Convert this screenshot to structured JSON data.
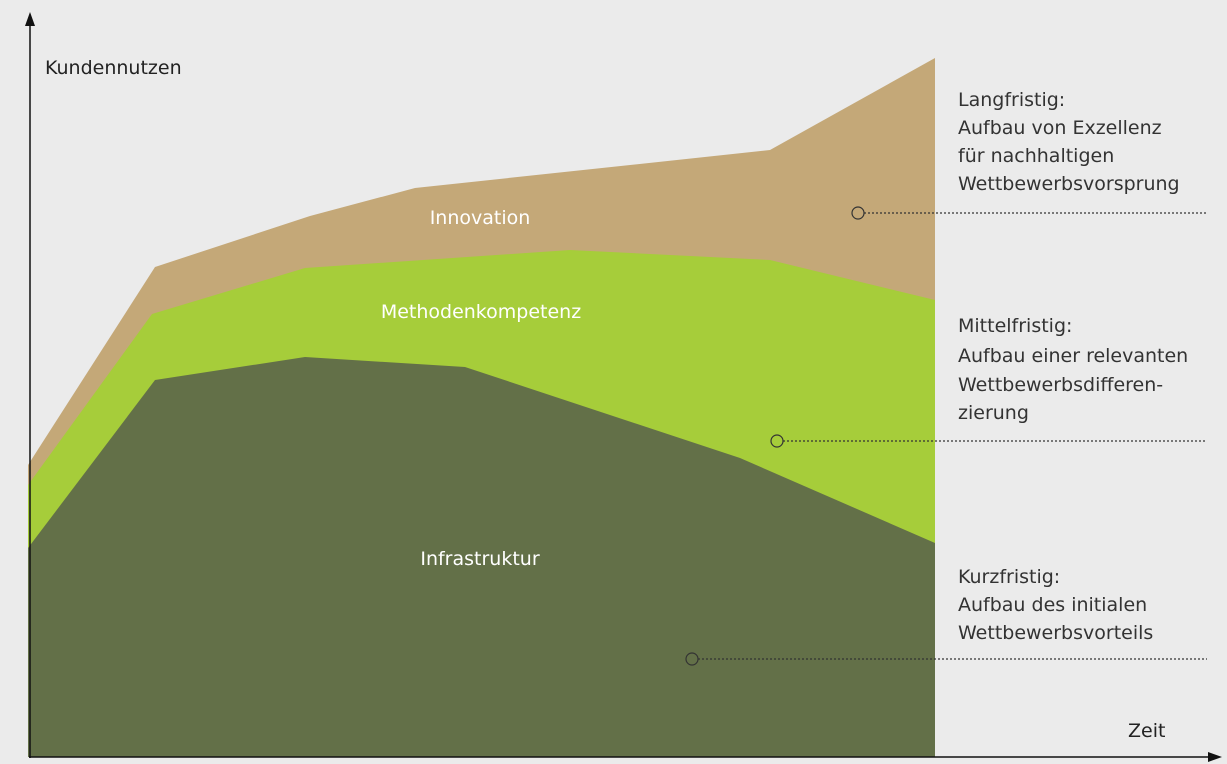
{
  "y_axis_label": "Kundennutzen",
  "x_axis_label": "Zeit",
  "areas": [
    {
      "label": "Innovation"
    },
    {
      "label": "Methodenkompetenz"
    },
    {
      "label": "Infrastruktur"
    }
  ],
  "notes": [
    {
      "lines": [
        "Langfristig:",
        "Aufbau von Exzellenz",
        "für nachhaltigen",
        "Wettbewerbsvorsprung"
      ]
    },
    {
      "lines": [
        "Mittelfristig:",
        "Aufbau einer relevanten",
        "Wettbewerbsdifferen-",
        "zierung"
      ]
    },
    {
      "lines": [
        "Kurzfristig:",
        "Aufbau des initialen",
        "Wettbewerbsvorteils"
      ]
    }
  ]
}
